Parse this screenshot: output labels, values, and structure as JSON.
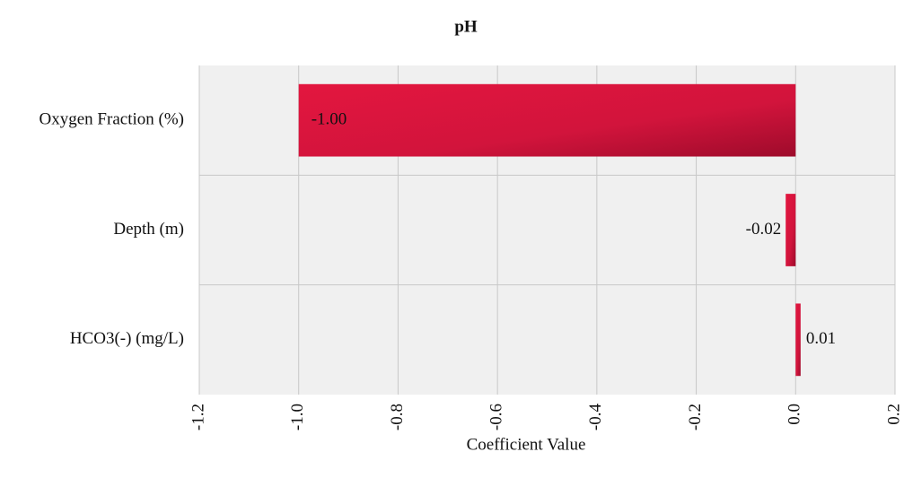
{
  "chart_data": {
    "type": "bar",
    "orientation": "horizontal",
    "title": "pH",
    "x_label": "Coefficient Value",
    "categories": [
      "Oxygen Fraction  (%)",
      "Depth (m)",
      "HCO3(-)  (mg/L)"
    ],
    "values": [
      -1.0,
      -0.02,
      0.01
    ],
    "value_labels": [
      "-1.00",
      "-0.02",
      "0.01"
    ],
    "color": "#d2143c",
    "xlim": [
      -1.2,
      0.2
    ],
    "xticks": [
      -1.2,
      {
        "value": -1.0,
        "label": "-1.0"
      },
      -0.8,
      -0.6,
      -0.4,
      -0.2,
      {
        "value": 0.0,
        "label": "0.0"
      },
      0.2
    ],
    "grid": true
  }
}
